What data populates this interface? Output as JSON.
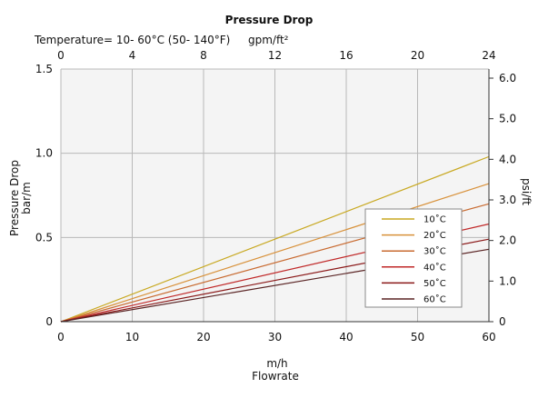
{
  "chart_data": {
    "type": "line",
    "title": "Pressure Drop",
    "subtitle": "Temperature= 10- 60°C (50- 140°F)",
    "top_axis_unit": "gpm/ft²",
    "xlabel_unit": "m/h",
    "xlabel": "Flowrate",
    "ylabel_left": [
      "Pressure Drop",
      "bar/m"
    ],
    "ylabel_right": "psi/ft",
    "x": [
      0,
      60
    ],
    "xlim": [
      0,
      60
    ],
    "ylim": [
      0,
      1.5
    ],
    "x_ticks": [
      "0",
      "10",
      "20",
      "30",
      "40",
      "50",
      "60"
    ],
    "y_ticks": [
      "0",
      "0.5",
      "1.0",
      "1.5"
    ],
    "top_ticks": [
      "0",
      "4",
      "8",
      "12",
      "16",
      "20",
      "24"
    ],
    "right_ticks": [
      "0",
      "1.0",
      "2.0",
      "3.0",
      "4.0",
      "5.0",
      "6.0"
    ],
    "grid": true,
    "legend_position": "center-right",
    "series": [
      {
        "name": "10˚C",
        "values": [
          0,
          0.98
        ],
        "color": "#c8a820"
      },
      {
        "name": "20˚C",
        "values": [
          0,
          0.82
        ],
        "color": "#d8913a"
      },
      {
        "name": "30˚C",
        "values": [
          0,
          0.7
        ],
        "color": "#c86a30"
      },
      {
        "name": "40˚C",
        "values": [
          0,
          0.58
        ],
        "color": "#c02828"
      },
      {
        "name": "50˚C",
        "values": [
          0,
          0.49
        ],
        "color": "#8a1818"
      },
      {
        "name": "60˚C",
        "values": [
          0,
          0.43
        ],
        "color": "#5a2424"
      }
    ]
  }
}
